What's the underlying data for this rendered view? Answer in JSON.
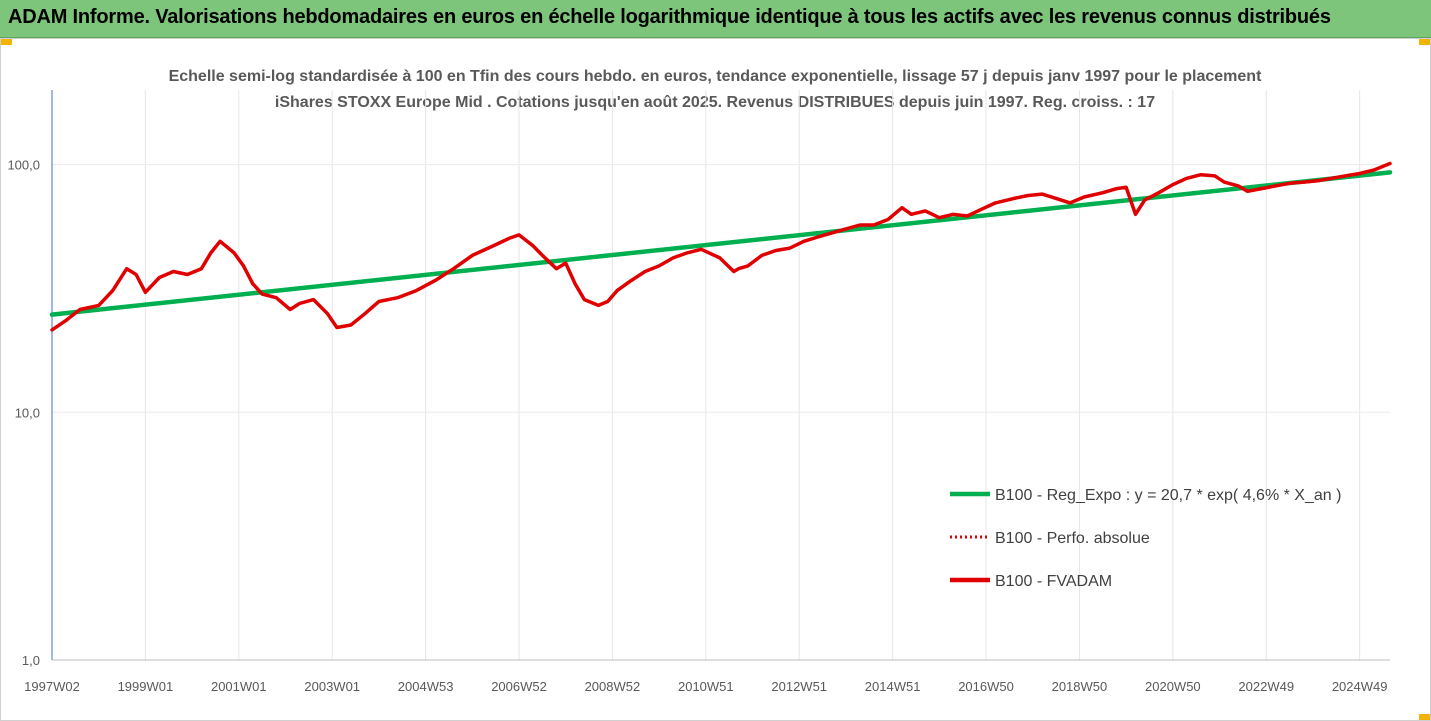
{
  "banner": {
    "title": "ADAM Informe. Valorisations hebdomadaires en euros en échelle logarithmique identique à tous les actifs avec les revenus connus distribués",
    "color": "#7dc57b"
  },
  "chart_data": {
    "type": "line",
    "title": "Echelle semi-log standardisée à 100 en Tfin des cours hebdo. en euros, tendance exponentielle, lissage 57 j depuis janv 1997 pour le placement iShares STOXX Europe Mid . Cotations jusqu'en août 2025. Revenus DISTRIBUES depuis juin 1997. Reg. croiss. : 17",
    "y_scale": "log",
    "ylim": [
      1,
      200
    ],
    "y_ticks": [
      "1,0",
      "10,0",
      "100,0"
    ],
    "y_tick_values": [
      1,
      10,
      100
    ],
    "x_range": [
      1997.0,
      2025.65
    ],
    "x_tick_labels": [
      "1997W02",
      "1999W01",
      "2001W01",
      "2003W01",
      "2004W53",
      "2006W52",
      "2008W52",
      "2010W51",
      "2012W51",
      "2014W51",
      "2016W50",
      "2018W50",
      "2020W50",
      "2022W49",
      "2024W49"
    ],
    "x_tick_positions": [
      1997.0,
      1999.0,
      2001.0,
      2003.0,
      2005.0,
      2007.0,
      2009.0,
      2011.0,
      2013.0,
      2015.0,
      2017.0,
      2019.0,
      2021.0,
      2023.0,
      2025.0
    ],
    "grid": "vertical",
    "legend_position": "bottom-right",
    "series": [
      {
        "name": "B100 - Reg_Expo : y = 20,7 * exp( 4,6% *  X_an )",
        "color": "#00b050",
        "style": "solid",
        "x": [
          1997.0,
          2025.65
        ],
        "y": [
          24.8,
          93.0
        ]
      },
      {
        "name": "B100 - Perfo. absolue",
        "color": "#e00000",
        "style": "dotted",
        "x": [],
        "y": []
      },
      {
        "name": "B100 - FVADAM",
        "color": "#e00000",
        "style": "solid",
        "x": [
          1997.0,
          1997.3,
          1997.6,
          1998.0,
          1998.3,
          1998.6,
          1998.8,
          1999.0,
          1999.3,
          1999.6,
          1999.9,
          2000.2,
          2000.4,
          2000.6,
          2000.9,
          2001.1,
          2001.3,
          2001.5,
          2001.8,
          2002.1,
          2002.3,
          2002.6,
          2002.9,
          2003.1,
          2003.4,
          2003.7,
          2004.0,
          2004.4,
          2004.8,
          2005.2,
          2005.6,
          2006.0,
          2006.4,
          2006.8,
          2007.0,
          2007.3,
          2007.5,
          2007.8,
          2008.0,
          2008.2,
          2008.4,
          2008.7,
          2008.9,
          2009.1,
          2009.4,
          2009.7,
          2010.0,
          2010.3,
          2010.6,
          2010.9,
          2011.3,
          2011.6,
          2011.7,
          2011.9,
          2012.2,
          2012.5,
          2012.8,
          2013.1,
          2013.4,
          2013.7,
          2014.0,
          2014.3,
          2014.6,
          2014.9,
          2015.2,
          2015.4,
          2015.7,
          2016.0,
          2016.3,
          2016.6,
          2016.9,
          2017.2,
          2017.6,
          2017.9,
          2018.2,
          2018.5,
          2018.8,
          2019.1,
          2019.5,
          2019.8,
          2020.0,
          2020.2,
          2020.4,
          2020.7,
          2021.0,
          2021.3,
          2021.6,
          2021.9,
          2022.1,
          2022.4,
          2022.6,
          2022.9,
          2023.2,
          2023.5,
          2023.8,
          2024.1,
          2024.4,
          2024.7,
          2025.0,
          2025.3,
          2025.65
        ],
        "y": [
          21.5,
          23.5,
          26.0,
          27.0,
          31.0,
          38.0,
          36.0,
          30.5,
          35.0,
          37.0,
          36.0,
          38.0,
          44.0,
          49.0,
          44.0,
          39.0,
          33.0,
          30.0,
          29.0,
          26.0,
          27.5,
          28.5,
          25.0,
          22.0,
          22.5,
          25.0,
          28.0,
          29.0,
          31.0,
          34.0,
          38.0,
          43.0,
          46.5,
          50.5,
          52.0,
          47.0,
          43.0,
          38.0,
          40.0,
          33.0,
          28.5,
          27.0,
          28.0,
          31.0,
          34.0,
          37.0,
          39.0,
          42.0,
          44.0,
          45.5,
          42.0,
          37.0,
          38.0,
          39.0,
          43.0,
          45.0,
          46.0,
          49.0,
          51.0,
          53.0,
          55.0,
          57.0,
          57.0,
          60.0,
          67.0,
          63.0,
          65.0,
          61.0,
          63.0,
          62.0,
          66.0,
          70.0,
          73.0,
          75.0,
          76.0,
          73.0,
          70.0,
          74.0,
          77.0,
          80.0,
          81.0,
          63.0,
          72.0,
          77.0,
          83.0,
          88.0,
          91.0,
          90.0,
          85.0,
          82.0,
          78.0,
          80.0,
          82.0,
          84.0,
          85.0,
          86.0,
          88.0,
          90.0,
          92.0,
          95.0,
          101.0
        ]
      }
    ]
  }
}
